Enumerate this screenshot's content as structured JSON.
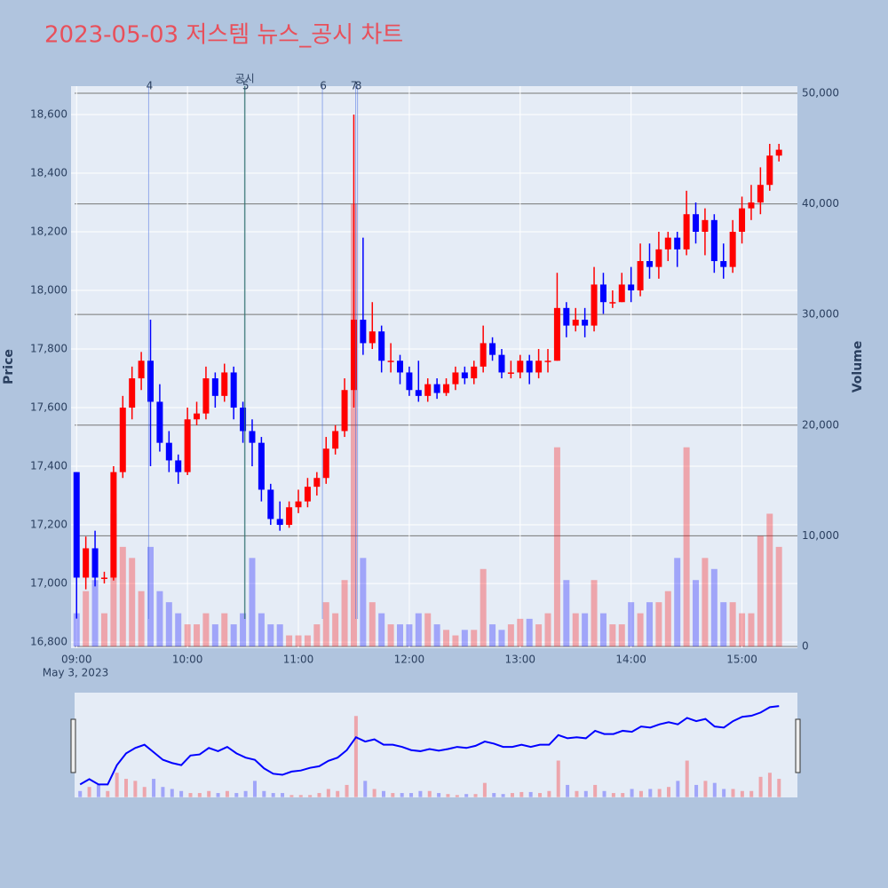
{
  "chart_data": {
    "type": "candlestick",
    "title": "2023-05-03 저스템 뉴스_공시 차트",
    "ylabel": "Price",
    "y2label": "Volume",
    "date_label": "May 3, 2023",
    "up_color": "#ff0000",
    "down_color": "#0000ff",
    "x": [
      "09:00",
      "09:05",
      "09:10",
      "09:15",
      "09:20",
      "09:25",
      "09:30",
      "09:35",
      "09:40",
      "09:45",
      "09:50",
      "09:55",
      "10:00",
      "10:05",
      "10:10",
      "10:15",
      "10:20",
      "10:25",
      "10:30",
      "10:35",
      "10:40",
      "10:45",
      "10:50",
      "10:55",
      "11:00",
      "11:05",
      "11:10",
      "11:15",
      "11:20",
      "11:25",
      "11:30",
      "11:35",
      "11:40",
      "11:45",
      "11:50",
      "11:55",
      "12:00",
      "12:05",
      "12:10",
      "12:15",
      "12:20",
      "12:25",
      "12:30",
      "12:35",
      "12:40",
      "12:45",
      "12:50",
      "12:55",
      "13:00",
      "13:05",
      "13:10",
      "13:15",
      "13:20",
      "13:25",
      "13:30",
      "13:35",
      "13:40",
      "13:45",
      "13:50",
      "13:55",
      "14:00",
      "14:05",
      "14:10",
      "14:15",
      "14:20",
      "14:25",
      "14:30",
      "14:35",
      "14:40",
      "14:45",
      "14:50",
      "14:55",
      "15:00",
      "15:05",
      "15:10",
      "15:15",
      "15:20"
    ],
    "open": [
      17380,
      17020,
      17120,
      17020,
      17020,
      17380,
      17600,
      17700,
      17760,
      17620,
      17480,
      17420,
      17380,
      17560,
      17580,
      17700,
      17640,
      17720,
      17600,
      17520,
      17480,
      17320,
      17220,
      17200,
      17260,
      17280,
      17330,
      17360,
      17460,
      17520,
      17660,
      17900,
      17820,
      17860,
      17760,
      17760,
      17720,
      17660,
      17640,
      17680,
      17650,
      17680,
      17720,
      17700,
      17740,
      17820,
      17780,
      17720,
      17720,
      17760,
      17720,
      17760,
      17760,
      17940,
      17880,
      17900,
      17880,
      18020,
      17960,
      17960,
      18020,
      18000,
      18100,
      18080,
      18140,
      18180,
      18140,
      18260,
      18200,
      18240,
      18100,
      18080,
      18200,
      18280,
      18300,
      18360,
      18460
    ],
    "high": [
      17380,
      17160,
      17180,
      17040,
      17400,
      17640,
      17740,
      17790,
      17900,
      17680,
      17520,
      17440,
      17600,
      17620,
      17740,
      17720,
      17750,
      17740,
      17620,
      17560,
      17500,
      17340,
      17280,
      17280,
      17320,
      17360,
      17380,
      17500,
      17540,
      17700,
      18600,
      18180,
      17960,
      17880,
      17820,
      17780,
      17740,
      17760,
      17700,
      17700,
      17700,
      17740,
      17740,
      17760,
      17880,
      17840,
      17800,
      17760,
      17780,
      17780,
      17800,
      17800,
      18060,
      17960,
      17940,
      17940,
      18080,
      18060,
      18000,
      18060,
      18080,
      18160,
      18160,
      18200,
      18200,
      18200,
      18340,
      18300,
      18280,
      18260,
      18160,
      18240,
      18320,
      18360,
      18420,
      18500,
      18500
    ],
    "low": [
      16880,
      16980,
      16990,
      17000,
      17010,
      17360,
      17560,
      17660,
      17400,
      17450,
      17380,
      17340,
      17370,
      17540,
      17560,
      17600,
      17620,
      17560,
      17480,
      17400,
      17280,
      17200,
      17180,
      17190,
      17240,
      17260,
      17300,
      17340,
      17440,
      17500,
      17600,
      17780,
      17800,
      17720,
      17720,
      17680,
      17640,
      17620,
      17620,
      17630,
      17640,
      17660,
      17680,
      17680,
      17720,
      17760,
      17700,
      17700,
      17700,
      17680,
      17700,
      17720,
      17760,
      17840,
      17860,
      17840,
      17860,
      17920,
      17940,
      17960,
      17960,
      17980,
      18040,
      18040,
      18100,
      18080,
      18120,
      18160,
      18120,
      18060,
      18040,
      18060,
      18160,
      18240,
      18260,
      18340,
      18440
    ],
    "close": [
      17020,
      17120,
      17020,
      17020,
      17380,
      17600,
      17700,
      17760,
      17620,
      17480,
      17420,
      17380,
      17560,
      17580,
      17700,
      17640,
      17720,
      17600,
      17520,
      17480,
      17320,
      17220,
      17200,
      17260,
      17280,
      17330,
      17360,
      17460,
      17520,
      17660,
      17900,
      17820,
      17860,
      17760,
      17760,
      17720,
      17660,
      17640,
      17680,
      17650,
      17680,
      17720,
      17700,
      17740,
      17820,
      17780,
      17720,
      17720,
      17760,
      17720,
      17760,
      17760,
      17940,
      17880,
      17900,
      17880,
      18020,
      17960,
      17960,
      18020,
      18000,
      18100,
      18080,
      18140,
      18180,
      18140,
      18260,
      18200,
      18240,
      18100,
      18080,
      18200,
      18280,
      18300,
      18360,
      18460,
      18480
    ],
    "volume": [
      3000,
      5000,
      6000,
      3000,
      12000,
      9000,
      8000,
      5000,
      9000,
      5000,
      4000,
      3000,
      2000,
      2000,
      3000,
      2000,
      3000,
      2000,
      3000,
      8000,
      3000,
      2000,
      2000,
      1000,
      1000,
      1000,
      2000,
      4000,
      3000,
      6000,
      40000,
      8000,
      4000,
      3000,
      2000,
      2000,
      2000,
      3000,
      3000,
      2000,
      1500,
      1000,
      1500,
      1500,
      7000,
      2000,
      1500,
      2000,
      2500,
      2500,
      2000,
      3000,
      18000,
      6000,
      3000,
      3000,
      6000,
      3000,
      2000,
      2000,
      4000,
      3000,
      4000,
      4000,
      5000,
      8000,
      18000,
      6000,
      8000,
      7000,
      4000,
      4000,
      3000,
      3000,
      10000,
      12000,
      9000
    ],
    "xlim": [
      "08:57",
      "15:30"
    ],
    "xticks": [
      "09:00",
      "10:00",
      "11:00",
      "12:00",
      "13:00",
      "14:00",
      "15:00"
    ],
    "ylim": [
      16779,
      18697
    ],
    "yticks": [
      {
        "value": 16800,
        "label": "16,800"
      },
      {
        "value": 17000,
        "label": "17,000"
      },
      {
        "value": 17200,
        "label": "17,200"
      },
      {
        "value": 17400,
        "label": "17,400"
      },
      {
        "value": 17600,
        "label": "17,600"
      },
      {
        "value": 17800,
        "label": "17,800"
      },
      {
        "value": 18000,
        "label": "18,000"
      },
      {
        "value": 18200,
        "label": "18,200"
      },
      {
        "value": 18400,
        "label": "18,400"
      },
      {
        "value": 18600,
        "label": "18,600"
      }
    ],
    "y2lim": [
      -160,
      50640
    ],
    "y2ticks": [
      0,
      {
        "value": 10000,
        "label": "10,000"
      },
      {
        "value": 20000,
        "label": "20,000"
      },
      {
        "value": 30000,
        "label": "30,000"
      },
      {
        "value": 40000,
        "label": "40,000"
      },
      {
        "value": 50000,
        "label": "50,000"
      }
    ],
    "vlines": [
      {
        "x": "09:39",
        "label": "4"
      },
      {
        "x": "10:31",
        "label": "5",
        "annotation": "공시"
      },
      {
        "x": "11:13",
        "label": "6"
      },
      {
        "x": "11:31",
        "label": "7"
      },
      {
        "x": "11:32",
        "label": "8"
      }
    ],
    "grid": true
  }
}
